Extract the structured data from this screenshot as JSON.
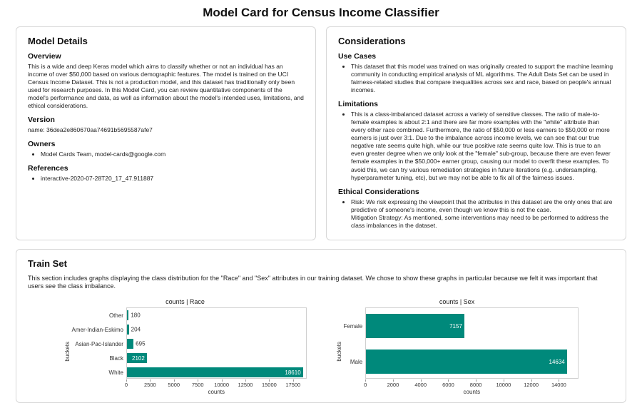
{
  "page": {
    "title": "Model Card for Census Income Classifier"
  },
  "model_details": {
    "title": "Model Details",
    "overview": {
      "heading": "Overview",
      "text": "This is a wide and deep Keras model which aims to classify whether or not an individual has an income of over $50,000 based on various demographic features. The model is trained on the UCI Census Income Dataset. This is not a production model, and this dataset has traditionally only been used for research purposes. In this Model Card, you can review quantitative components of the model's performance and data, as well as information about the model's intended uses, limitations, and ethical considerations."
    },
    "version": {
      "heading": "Version",
      "text": "name: 36dea2e860670aa74691b5695587afe7"
    },
    "owners": {
      "heading": "Owners",
      "items": [
        "Model Cards Team, model-cards@google.com"
      ]
    },
    "references": {
      "heading": "References",
      "items": [
        "interactive-2020-07-28T20_17_47.911887"
      ]
    }
  },
  "considerations": {
    "title": "Considerations",
    "use_cases": {
      "heading": "Use Cases",
      "items": [
        "This dataset that this model was trained on was originally created to support the machine learning community in conducting empirical analysis of ML algorithms. The Adult Data Set can be used in fairness-related studies that compare inequalities across sex and race, based on people's annual incomes."
      ]
    },
    "limitations": {
      "heading": "Limitations",
      "items": [
        "This is a class-imbalanced dataset across a variety of sensitive classes. The ratio of male-to-female examples is about 2:1 and there are far more examples with the \"white\" attribute than every other race combined. Furthermore, the ratio of $50,000 or less earners to $50,000 or more earners is just over 3:1. Due to the imbalance across income levels, we can see that our true negative rate seems quite high, while our true positive rate seems quite low. This is true to an even greater degree when we only look at the \"female\" sub-group, because there are even fewer female examples in the $50,000+ earner group, causing our model to overfit these examples. To avoid this, we can try various remediation strategies in future iterations (e.g. undersampling, hyperparameter tuning, etc), but we may not be able to fix all of the fairness issues."
      ]
    },
    "ethical": {
      "heading": "Ethical Considerations",
      "risk": "Risk: We risk expressing the viewpoint that the attributes in this dataset are the only ones that are predictive of someone's income, even though we know this is not the case.",
      "mitigation": "Mitigation Strategy: As mentioned, some interventions may need to be performed to address the class imbalances in the dataset."
    }
  },
  "train_set": {
    "title": "Train Set",
    "description": "This section includes graphs displaying the class distribution for the \"Race\" and \"Sex\" attributes in our training dataset. We chose to show these graphs in particular because we felt it was important that users see the class imbalance."
  },
  "chart_data": [
    {
      "type": "bar",
      "orientation": "horizontal",
      "title": "counts | Race",
      "categories": [
        "Other",
        "Amer-Indian-Eskimo",
        "Asian-Pac-Islander",
        "Black",
        "White"
      ],
      "values": [
        180,
        204,
        695,
        2102,
        18610
      ],
      "xlabel": "counts",
      "ylabel": "buckets",
      "xlim": [
        0,
        18900
      ],
      "xticks": [
        0,
        2500,
        5000,
        7500,
        10000,
        12500,
        15000,
        17500
      ],
      "bar_color": "#00897b",
      "legend": "none",
      "grid": false
    },
    {
      "type": "bar",
      "orientation": "horizontal",
      "title": "counts | Sex",
      "categories": [
        "Female",
        "Male"
      ],
      "values": [
        7157,
        14634
      ],
      "xlabel": "counts",
      "ylabel": "buckets",
      "xlim": [
        0,
        15400
      ],
      "xticks": [
        0,
        2000,
        4000,
        6000,
        8000,
        10000,
        12000,
        14000
      ],
      "bar_color": "#00897b",
      "legend": "none",
      "grid": false
    }
  ]
}
